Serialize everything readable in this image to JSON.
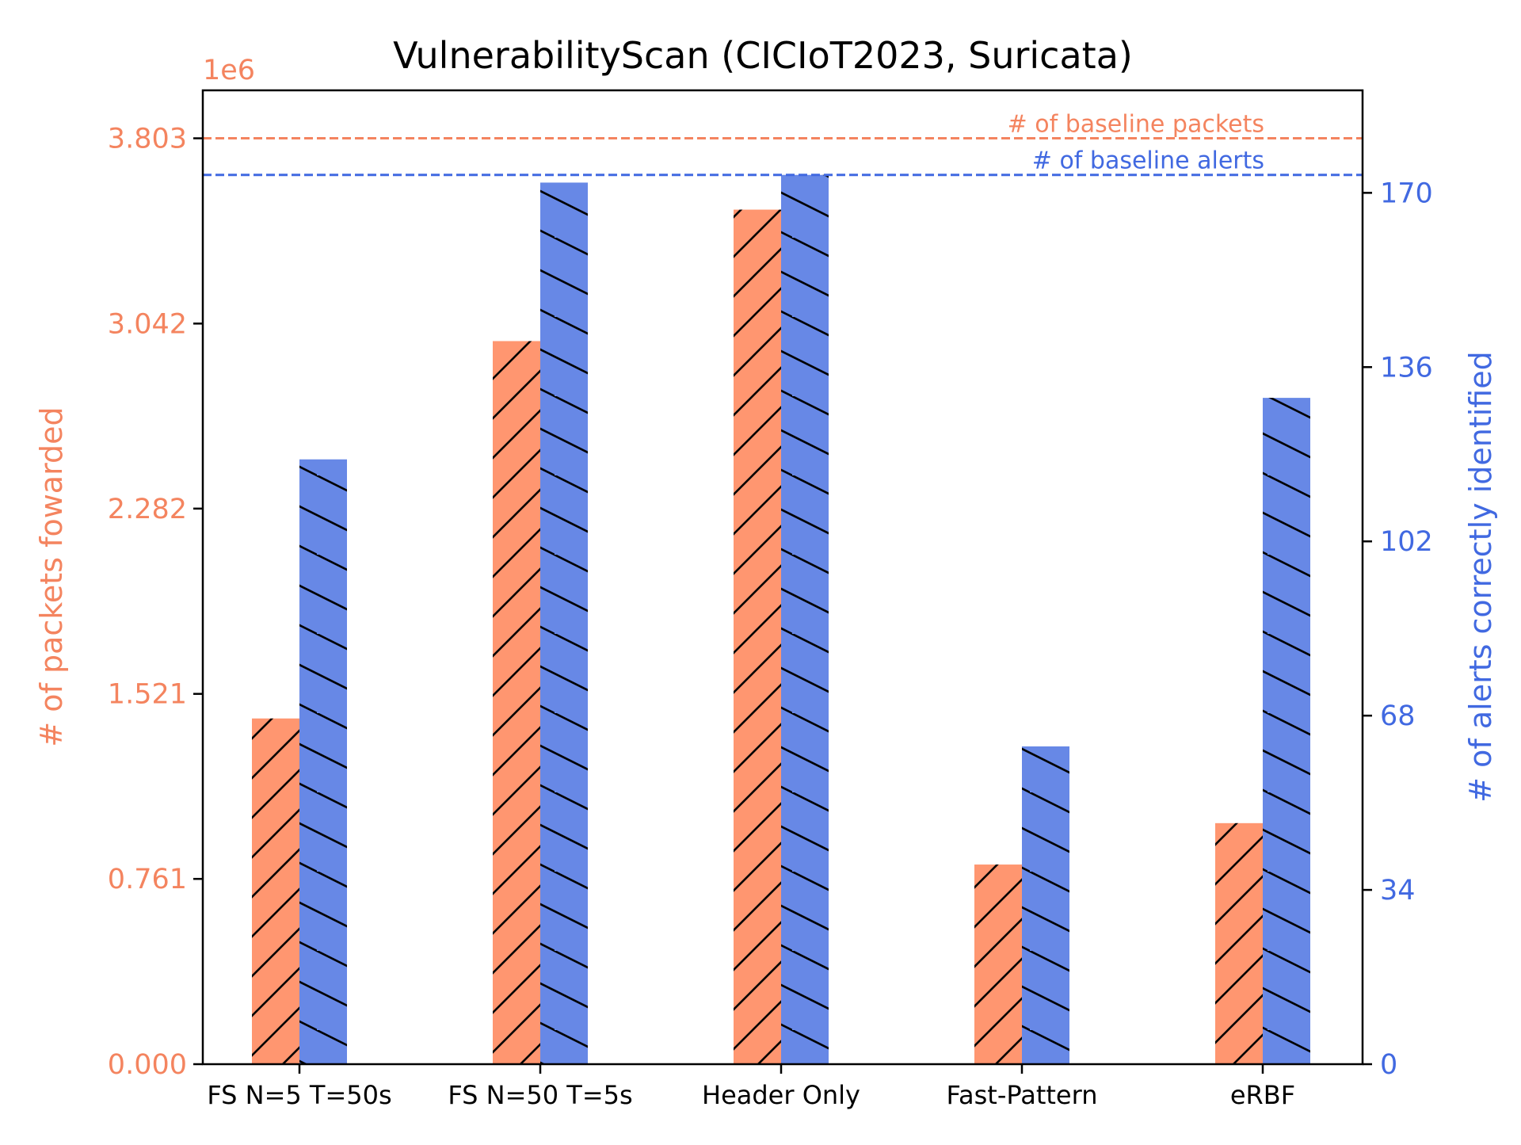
{
  "chart_data": {
    "type": "bar",
    "title": "VulnerabilityScan (CICIoT2023, Suricata)",
    "categories": [
      "FS N=5 T=50s",
      "FS N=50 T=5s",
      "Header Only",
      "Fast-Pattern",
      "eRBF"
    ],
    "left_axis": {
      "label": "# of packets fowarded",
      "offset_text": "1e6",
      "ticks": [
        "0.000",
        "0.761",
        "1.521",
        "2.282",
        "3.042",
        "3.803"
      ],
      "tick_values": [
        0,
        0.761,
        1.521,
        2.282,
        3.042,
        3.803
      ],
      "ylim": [
        0,
        4.0
      ],
      "color": "#F4845F"
    },
    "right_axis": {
      "label": "# of alerts correctly identified",
      "ticks": [
        "0",
        "34",
        "68",
        "102",
        "136",
        "170"
      ],
      "tick_values": [
        0,
        34,
        68,
        102,
        136,
        170
      ],
      "ylim": [
        0,
        190
      ],
      "color": "#4169E1"
    },
    "series": [
      {
        "name": "# of packets fowarded",
        "axis": "left",
        "unit_scale": "1e6",
        "values": [
          1.42,
          2.97,
          3.51,
          0.82,
          0.99
        ],
        "color": "#FF9670",
        "hatch": "forward"
      },
      {
        "name": "# of alerts correctly identified",
        "axis": "right",
        "values": [
          118,
          172,
          173.5,
          62,
          130
        ],
        "color": "#6788E6",
        "hatch": "backward"
      }
    ],
    "reference_lines": [
      {
        "label": "# of baseline packets",
        "axis": "left",
        "value": 3.803,
        "color": "#F4845F",
        "style": "dashed"
      },
      {
        "label": "# of baseline alerts",
        "axis": "right",
        "value": 173.5,
        "color": "#4169E1",
        "style": "dashed"
      }
    ],
    "grid": false,
    "legend": "none"
  }
}
